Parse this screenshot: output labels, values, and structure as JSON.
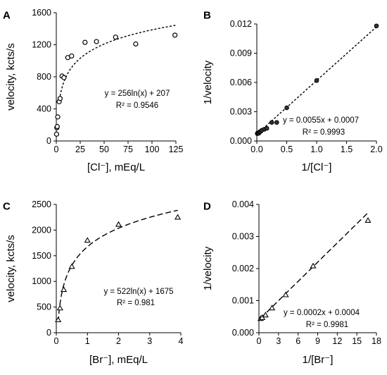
{
  "chart_data": [
    {
      "panel": "A",
      "type": "scatter",
      "xlabel": "[Cl⁻], mEq/L",
      "ylabel": "velocity, kcts/s",
      "xlim": [
        0,
        125
      ],
      "ylim": [
        0,
        1600
      ],
      "xticks": [
        0,
        25,
        50,
        75,
        100,
        125
      ],
      "yticks": [
        0,
        400,
        800,
        1200,
        1600
      ],
      "xtick_labels": [
        "0",
        "25",
        "50",
        "75",
        "100",
        "125"
      ],
      "ytick_labels": [
        "0",
        "400",
        "800",
        "1200",
        "1600"
      ],
      "marker": "circle-open",
      "points": [
        [
          0.3,
          85
        ],
        [
          0.6,
          165
        ],
        [
          1,
          180
        ],
        [
          1.5,
          300
        ],
        [
          3,
          490
        ],
        [
          4,
          530
        ],
        [
          6,
          810
        ],
        [
          8,
          790
        ],
        [
          12,
          1040
        ],
        [
          16,
          1060
        ],
        [
          30,
          1230
        ],
        [
          42,
          1240
        ],
        [
          62,
          1295
        ],
        [
          83,
          1210
        ],
        [
          124,
          1320
        ]
      ],
      "fit": {
        "kind": "log",
        "a": 256,
        "b": 207,
        "style": "dotted",
        "x_range": [
          4,
          125
        ]
      },
      "equation": "y = 256ln(x) + 207",
      "r2": "R² = 0.9546"
    },
    {
      "panel": "B",
      "type": "scatter",
      "xlabel": "1/[Cl⁻]",
      "ylabel": "1/velocity",
      "xlim": [
        0,
        2
      ],
      "ylim": [
        0,
        0.012
      ],
      "xticks": [
        0,
        0.5,
        1,
        1.5,
        2
      ],
      "yticks": [
        0,
        0.003,
        0.006,
        0.009,
        0.012
      ],
      "xtick_labels": [
        "0.0",
        "0.5",
        "1.0",
        "1.5",
        "2.0"
      ],
      "ytick_labels": [
        "0.000",
        "0.003",
        "0.006",
        "0.009",
        "0.012"
      ],
      "marker": "circle-filled",
      "points": [
        [
          0.008,
          0.00076
        ],
        [
          0.012,
          0.00081
        ],
        [
          0.016,
          0.00078
        ],
        [
          0.024,
          0.0008
        ],
        [
          0.033,
          0.00079
        ],
        [
          0.048,
          0.00094
        ],
        [
          0.063,
          0.00097
        ],
        [
          0.083,
          0.0011
        ],
        [
          0.125,
          0.0012
        ],
        [
          0.167,
          0.0013
        ],
        [
          0.25,
          0.0019
        ],
        [
          0.333,
          0.0019
        ],
        [
          0.5,
          0.0034
        ],
        [
          1.0,
          0.0062
        ],
        [
          2.0,
          0.0118
        ]
      ],
      "fit": {
        "kind": "linear",
        "a": 0.0055,
        "b": 0.0007,
        "style": "dotted",
        "x_range": [
          0,
          2
        ]
      },
      "equation": "y = 0.0055x + 0.0007",
      "r2": "R² = 0.9993"
    },
    {
      "panel": "C",
      "type": "scatter",
      "xlabel": "[Br⁻], mEq/L",
      "ylabel": "velocity, kcts/s",
      "xlim": [
        0,
        4
      ],
      "ylim": [
        0,
        2500
      ],
      "xticks": [
        0,
        1,
        2,
        3,
        4
      ],
      "yticks": [
        0,
        500,
        1000,
        1500,
        2000,
        2500
      ],
      "xtick_labels": [
        "0",
        "1",
        "2",
        "3",
        "4"
      ],
      "ytick_labels": [
        "0",
        "500",
        "1000",
        "1500",
        "2000",
        "2500"
      ],
      "marker": "triangle-open",
      "points": [
        [
          0.06,
          250
        ],
        [
          0.12,
          480
        ],
        [
          0.24,
          840
        ],
        [
          0.5,
          1290
        ],
        [
          1.0,
          1800
        ],
        [
          2.0,
          2110
        ],
        [
          3.9,
          2250
        ]
      ],
      "fit": {
        "kind": "log",
        "a": 522,
        "b": 1675,
        "style": "dashed",
        "x_range": [
          0.06,
          3.9
        ]
      },
      "equation": "y = 522ln(x) + 1675",
      "r2": "R² = 0.981"
    },
    {
      "panel": "D",
      "type": "scatter",
      "xlabel": "1/[Br⁻]",
      "ylabel": "1/velocity",
      "xlim": [
        0,
        18
      ],
      "ylim": [
        0,
        0.004
      ],
      "xticks": [
        0,
        3,
        6,
        9,
        12,
        15,
        18
      ],
      "yticks": [
        0,
        0.001,
        0.002,
        0.003,
        0.004
      ],
      "xtick_labels": [
        "0",
        "3",
        "6",
        "9",
        "12",
        "15",
        "18"
      ],
      "ytick_labels": [
        "0.000",
        "0.001",
        "0.002",
        "0.003",
        "0.004"
      ],
      "marker": "triangle-open",
      "points": [
        [
          0.26,
          0.00044
        ],
        [
          0.5,
          0.00047
        ],
        [
          1.0,
          0.00055
        ],
        [
          2.0,
          0.00077
        ],
        [
          4.1,
          0.00118
        ],
        [
          8.3,
          0.00208
        ],
        [
          16.7,
          0.0035
        ]
      ],
      "fit": {
        "kind": "linear",
        "a": 0.0002,
        "b": 0.0004,
        "style": "dashed",
        "x_range": [
          0.26,
          16.7
        ]
      },
      "equation": "y = 0.0002x + 0.0004",
      "r2": "R² = 0.9981"
    }
  ]
}
